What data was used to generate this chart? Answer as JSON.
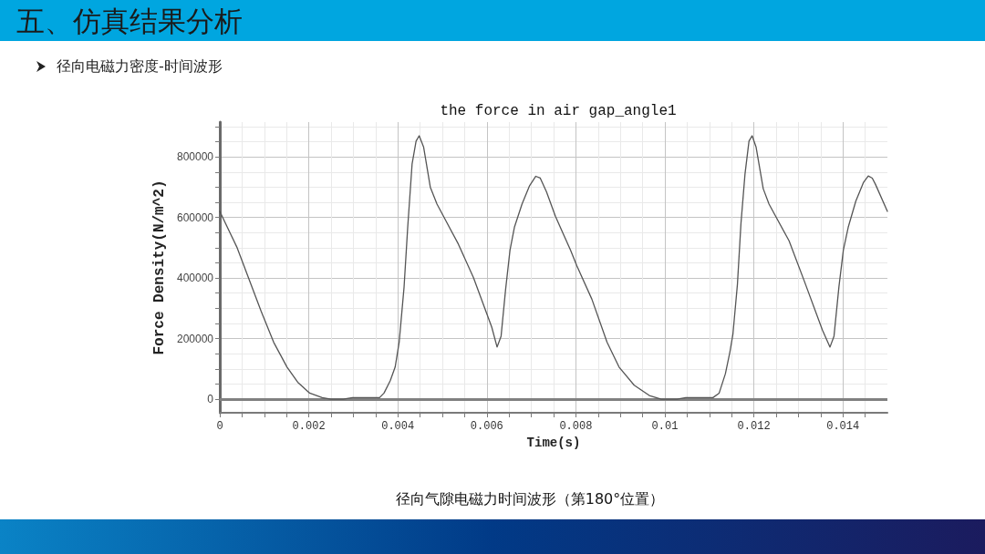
{
  "chart_data": {
    "type": "line",
    "title": "the force in air gap_angle1",
    "xlabel": "Time(s)",
    "ylabel": "Force Density(N/m^2)",
    "annotations": [
      "五、仿真结果分析",
      "径向电磁力密度-时间波形",
      "径向气隙电磁力时间波形（第180°位置）"
    ],
    "color": "#555555",
    "x": [
      0,
      0.00039,
      0.00093,
      0.00121,
      0.00151,
      0.00175,
      0.00202,
      0.0023,
      0.0025,
      0.00277,
      0.00298,
      0.00359,
      0.00369,
      0.00383,
      0.00394,
      0.00403,
      0.00414,
      0.00422,
      0.00432,
      0.00441,
      0.00448,
      0.00458,
      0.00473,
      0.00488,
      0.00536,
      0.0057,
      0.00611,
      0.00623,
      0.00632,
      0.00642,
      0.00652,
      0.00662,
      0.00679,
      0.00696,
      0.0071,
      0.0072,
      0.00734,
      0.00754,
      0.00788,
      0.00802,
      0.00836,
      0.0087,
      0.00897,
      0.00931,
      0.00965,
      0.00992,
      0.01027,
      0.01047,
      0.01108,
      0.01122,
      0.01136,
      0.01146,
      0.01153,
      0.01163,
      0.01171,
      0.0118,
      0.01189,
      0.01196,
      0.01205,
      0.01221,
      0.01234,
      0.01279,
      0.01313,
      0.01354,
      0.01371,
      0.0138,
      0.01391,
      0.01401,
      0.01412,
      0.01429,
      0.01446,
      0.01457,
      0.01466,
      0.01473,
      0.015
    ],
    "values": [
      620000,
      500000,
      290000,
      188000,
      106000,
      56000,
      20000,
      5000,
      0,
      0,
      5000,
      5000,
      20000,
      61000,
      106000,
      188000,
      370000,
      563000,
      776000,
      852000,
      870000,
      832000,
      700000,
      644000,
      512000,
      401000,
      238000,
      172000,
      208000,
      360000,
      492000,
      568000,
      644000,
      705000,
      736000,
      730000,
      685000,
      604000,
      492000,
      441000,
      330000,
      188000,
      106000,
      46000,
      12000,
      0,
      0,
      5000,
      5000,
      20000,
      84000,
      155000,
      216000,
      379000,
      581000,
      743000,
      852000,
      870000,
      832000,
      695000,
      644000,
      523000,
      391000,
      228000,
      172000,
      208000,
      370000,
      492000,
      568000,
      654000,
      715000,
      737000,
      730000,
      710000,
      620000
    ],
    "xlim": [
      0,
      0.015
    ],
    "ylim": [
      -45000,
      915000
    ],
    "xticks": [
      0,
      {
        "value": 0.0005,
        "label": null
      },
      {
        "value": 0.001,
        "label": null
      },
      {
        "value": 0.0015,
        "label": null
      },
      0.002,
      {
        "value": 0.0025,
        "label": null
      },
      {
        "value": 0.003,
        "label": null
      },
      {
        "value": 0.0035,
        "label": null
      },
      0.004,
      {
        "value": 0.0045,
        "label": null
      },
      {
        "value": 0.005,
        "label": null
      },
      {
        "value": 0.0055,
        "label": null
      },
      0.006,
      {
        "value": 0.0065,
        "label": null
      },
      {
        "value": 0.007,
        "label": null
      },
      {
        "value": 0.0075,
        "label": null
      },
      0.008,
      {
        "value": 0.0085,
        "label": null
      },
      {
        "value": 0.009,
        "label": null
      },
      {
        "value": 0.0095,
        "label": null
      },
      0.01,
      {
        "value": 0.0105,
        "label": null
      },
      {
        "value": 0.011,
        "label": null
      },
      {
        "value": 0.0115,
        "label": null
      },
      0.012,
      {
        "value": 0.0125,
        "label": null
      },
      {
        "value": 0.013,
        "label": null
      },
      {
        "value": 0.0135,
        "label": null
      },
      0.014,
      {
        "value": 0.0145,
        "label": null
      }
    ],
    "yticks": [
      0,
      {
        "value": 50000,
        "label": null
      },
      {
        "value": 100000,
        "label": null
      },
      {
        "value": 150000,
        "label": null
      },
      200000,
      {
        "value": 250000,
        "label": null
      },
      {
        "value": 300000,
        "label": null
      },
      {
        "value": 350000,
        "label": null
      },
      400000,
      {
        "value": 450000,
        "label": null
      },
      {
        "value": 500000,
        "label": null
      },
      {
        "value": 550000,
        "label": null
      },
      600000,
      {
        "value": 650000,
        "label": null
      },
      {
        "value": 700000,
        "label": null
      },
      {
        "value": 750000,
        "label": null
      },
      800000,
      {
        "value": 850000,
        "label": null
      },
      {
        "value": 900000,
        "label": null
      }
    ],
    "grid": true,
    "ref_lines": [
      {
        "axis": "y",
        "value": 0,
        "color": "#808080"
      }
    ]
  }
}
